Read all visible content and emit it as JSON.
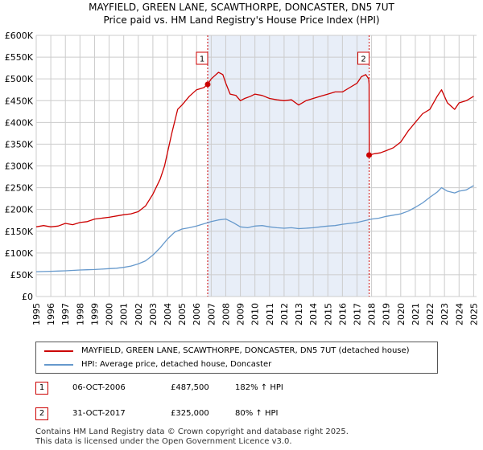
{
  "title_line1": "MAYFIELD, GREEN LANE, SCAWTHORPE, DONCASTER, DN5 7UT",
  "title_line2": "Price paid vs. HM Land Registry's House Price Index (HPI)",
  "colors": {
    "property": "#cc0000",
    "hpi": "#6699cc",
    "shade": "#e8eef8",
    "grid": "#cccccc",
    "vline": "#cc0000"
  },
  "chart_data": {
    "type": "line",
    "title": "Price paid vs. HM Land Registry's House Price Index (HPI)",
    "xlim": [
      1995,
      2025.2
    ],
    "ylim": [
      0,
      600000
    ],
    "x_ticks": [
      "1995",
      "1996",
      "1997",
      "1998",
      "1999",
      "2000",
      "2001",
      "2002",
      "2003",
      "2004",
      "2005",
      "2006",
      "2007",
      "2008",
      "2009",
      "2010",
      "2011",
      "2012",
      "2013",
      "2014",
      "2015",
      "2016",
      "2017",
      "2018",
      "2019",
      "2020",
      "2021",
      "2022",
      "2023",
      "2024",
      "2025"
    ],
    "x_tick_values": [
      1995,
      1996,
      1997,
      1998,
      1999,
      2000,
      2001,
      2002,
      2003,
      2004,
      2005,
      2006,
      2007,
      2008,
      2009,
      2010,
      2011,
      2012,
      2013,
      2014,
      2015,
      2016,
      2017,
      2018,
      2019,
      2020,
      2021,
      2022,
      2023,
      2024,
      2025
    ],
    "y_ticks": [
      "£0",
      "£50K",
      "£100K",
      "£150K",
      "£200K",
      "£250K",
      "£300K",
      "£350K",
      "£400K",
      "£450K",
      "£500K",
      "£550K",
      "£600K"
    ],
    "y_tick_values": [
      0,
      50000,
      100000,
      150000,
      200000,
      250000,
      300000,
      350000,
      400000,
      450000,
      500000,
      550000,
      600000
    ],
    "shaded_region": [
      2006.76,
      2017.83
    ],
    "series": [
      {
        "name": "MAYFIELD, GREEN LANE, SCAWTHORPE, DONCASTER, DN5 7UT (detached house)",
        "color": "#cc0000",
        "x": [
          1995.0,
          1995.5,
          1996.0,
          1996.5,
          1997.0,
          1997.5,
          1998.0,
          1998.5,
          1999.0,
          1999.5,
          2000.0,
          2000.5,
          2001.0,
          2001.5,
          2002.0,
          2002.5,
          2003.0,
          2003.5,
          2003.8,
          2004.0,
          2004.3,
          2004.7,
          2005.0,
          2005.5,
          2006.0,
          2006.5,
          2006.76,
          2007.0,
          2007.5,
          2007.8,
          2008.0,
          2008.3,
          2008.7,
          2009.0,
          2009.3,
          2009.7,
          2010.0,
          2010.5,
          2011.0,
          2011.5,
          2012.0,
          2012.5,
          2013.0,
          2013.5,
          2014.0,
          2014.5,
          2015.0,
          2015.5,
          2016.0,
          2016.5,
          2017.0,
          2017.3,
          2017.6,
          2017.8,
          2017.83,
          2017.84,
          2018.2,
          2018.6,
          2019.0,
          2019.5,
          2020.0,
          2020.5,
          2021.0,
          2021.5,
          2022.0,
          2022.5,
          2022.8,
          2023.2,
          2023.7,
          2024.0,
          2024.5,
          2025.0
        ],
        "values": [
          160000,
          163000,
          160000,
          162000,
          168000,
          165000,
          170000,
          172000,
          178000,
          180000,
          182000,
          185000,
          188000,
          190000,
          195000,
          208000,
          235000,
          270000,
          300000,
          330000,
          375000,
          430000,
          440000,
          460000,
          475000,
          480000,
          487500,
          500000,
          515000,
          510000,
          490000,
          465000,
          462000,
          450000,
          455000,
          460000,
          465000,
          462000,
          455000,
          452000,
          450000,
          452000,
          440000,
          450000,
          455000,
          460000,
          465000,
          470000,
          470000,
          480000,
          490000,
          505000,
          510000,
          500000,
          487500,
          325000,
          328000,
          330000,
          335000,
          342000,
          355000,
          380000,
          400000,
          420000,
          430000,
          460000,
          475000,
          445000,
          430000,
          445000,
          450000,
          460000
        ]
      },
      {
        "name": "HPI: Average price, detached house, Doncaster",
        "color": "#6699cc",
        "x": [
          1995.0,
          1995.5,
          1996.0,
          1996.5,
          1997.0,
          1997.5,
          1998.0,
          1998.5,
          1999.0,
          1999.5,
          2000.0,
          2000.5,
          2001.0,
          2001.5,
          2002.0,
          2002.5,
          2003.0,
          2003.5,
          2004.0,
          2004.5,
          2005.0,
          2005.5,
          2006.0,
          2006.5,
          2007.0,
          2007.5,
          2008.0,
          2008.5,
          2009.0,
          2009.5,
          2010.0,
          2010.5,
          2011.0,
          2011.5,
          2012.0,
          2012.5,
          2013.0,
          2013.5,
          2014.0,
          2014.5,
          2015.0,
          2015.5,
          2016.0,
          2016.5,
          2017.0,
          2017.5,
          2018.0,
          2018.5,
          2019.0,
          2019.5,
          2020.0,
          2020.5,
          2021.0,
          2021.5,
          2022.0,
          2022.5,
          2022.8,
          2023.2,
          2023.7,
          2024.0,
          2024.5,
          2025.0
        ],
        "values": [
          57000,
          57500,
          58000,
          58500,
          59000,
          60000,
          61000,
          61500,
          62000,
          63000,
          64000,
          65000,
          67000,
          70000,
          75000,
          82000,
          95000,
          112000,
          132000,
          148000,
          155000,
          158000,
          162000,
          167000,
          172000,
          176000,
          178000,
          170000,
          160000,
          158000,
          162000,
          163000,
          160000,
          158000,
          157000,
          158000,
          156000,
          157000,
          158000,
          160000,
          162000,
          163000,
          166000,
          168000,
          170000,
          174000,
          178000,
          180000,
          184000,
          187000,
          190000,
          196000,
          205000,
          215000,
          228000,
          240000,
          250000,
          242000,
          238000,
          242000,
          245000,
          255000
        ]
      }
    ],
    "markers": [
      {
        "label": "1",
        "x": 2006.76,
        "y": 487500
      },
      {
        "label": "2",
        "x": 2017.83,
        "y": 325000
      }
    ]
  },
  "legend": {
    "property_label": "MAYFIELD, GREEN LANE, SCAWTHORPE, DONCASTER, DN5 7UT (detached house)",
    "hpi_label": "HPI: Average price, detached house, Doncaster"
  },
  "transactions": [
    {
      "num": "1",
      "date": "06-OCT-2006",
      "price": "£487,500",
      "hpi": "182% ↑ HPI"
    },
    {
      "num": "2",
      "date": "31-OCT-2017",
      "price": "£325,000",
      "hpi": "80% ↑ HPI"
    }
  ],
  "footer_line1": "Contains HM Land Registry data © Crown copyright and database right 2025.",
  "footer_line2": "This data is licensed under the Open Government Licence v3.0."
}
